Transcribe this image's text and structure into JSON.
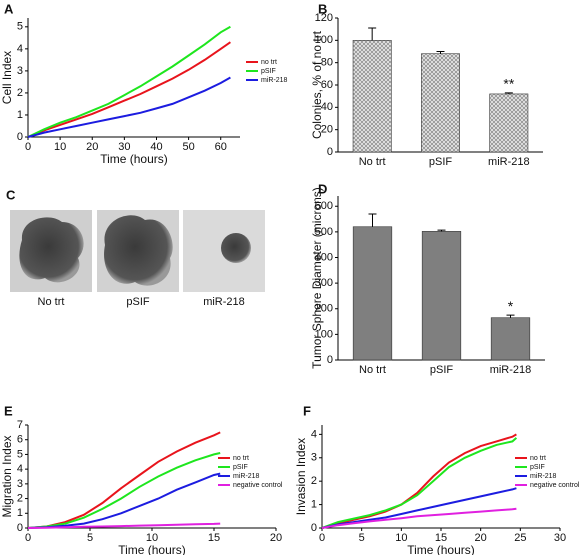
{
  "chart_data": [
    {
      "type": "line",
      "panel": "A",
      "xlabel": "Time (hours)",
      "ylabel": "Cell Index",
      "x": [
        0,
        5,
        10,
        15,
        20,
        25,
        30,
        35,
        40,
        45,
        50,
        55,
        60,
        63
      ],
      "series": [
        {
          "name": "no trt",
          "color": "#e8141c",
          "values": [
            0,
            0.3,
            0.55,
            0.8,
            1.05,
            1.35,
            1.65,
            1.95,
            2.3,
            2.65,
            3.05,
            3.5,
            4.0,
            4.3
          ]
        },
        {
          "name": "pSIF",
          "color": "#1ee61e",
          "values": [
            0,
            0.35,
            0.65,
            0.9,
            1.2,
            1.5,
            1.9,
            2.3,
            2.75,
            3.2,
            3.7,
            4.2,
            4.75,
            5.0
          ]
        },
        {
          "name": "miR-218",
          "color": "#1c1ce0",
          "values": [
            0,
            0.2,
            0.35,
            0.5,
            0.65,
            0.8,
            0.95,
            1.1,
            1.3,
            1.5,
            1.8,
            2.1,
            2.45,
            2.7
          ]
        }
      ],
      "xlim": [
        0,
        66
      ],
      "xticks": [
        0,
        10,
        20,
        30,
        40,
        50,
        60
      ],
      "ylim": [
        0,
        5.4
      ],
      "yticks": [
        0,
        1,
        2,
        3,
        4,
        5
      ]
    },
    {
      "type": "bar",
      "panel": "B",
      "ylabel": "Colonies, % of no trt",
      "categories": [
        "No trt",
        "pSIF",
        "miR-218"
      ],
      "values": [
        100,
        88,
        52
      ],
      "errors": [
        11,
        2,
        1
      ],
      "annotations": [
        null,
        null,
        "**"
      ],
      "color": "#cfcfcf",
      "pattern": "hatch",
      "ylim": [
        0,
        120
      ],
      "yticks": [
        0,
        20,
        40,
        60,
        80,
        100,
        120
      ]
    },
    {
      "type": "bar",
      "panel": "D",
      "ylabel": "Tumor Sphere Diameter (microns)",
      "categories": [
        "No trt",
        "pSIF",
        "miR-218"
      ],
      "values": [
        520,
        502,
        165
      ],
      "errors": [
        50,
        5,
        10
      ],
      "annotations": [
        null,
        null,
        "*"
      ],
      "color": "#7f7f7f",
      "ylim": [
        0,
        640
      ],
      "yticks": [
        0,
        100,
        200,
        300,
        400,
        500,
        600
      ]
    },
    {
      "type": "line",
      "panel": "E",
      "xlabel": "Time (hours)",
      "ylabel": "Migration Index",
      "x": [
        0,
        1.5,
        3,
        4.5,
        6,
        7.5,
        9,
        10.5,
        12,
        13.5,
        15,
        15.5
      ],
      "series": [
        {
          "name": "no trt",
          "color": "#e8141c",
          "values": [
            0,
            0.1,
            0.4,
            0.9,
            1.7,
            2.7,
            3.6,
            4.5,
            5.2,
            5.8,
            6.3,
            6.5
          ]
        },
        {
          "name": "pSIF",
          "color": "#1ee61e",
          "values": [
            0,
            0.1,
            0.3,
            0.7,
            1.3,
            2.0,
            2.8,
            3.5,
            4.1,
            4.6,
            5.0,
            5.1
          ]
        },
        {
          "name": "miR-218",
          "color": "#1c1ce0",
          "values": [
            0,
            0.05,
            0.15,
            0.3,
            0.6,
            1.0,
            1.5,
            2.0,
            2.6,
            3.1,
            3.6,
            3.7
          ]
        },
        {
          "name": "negative control",
          "color": "#e020e0",
          "values": [
            0,
            0.02,
            0.05,
            0.08,
            0.1,
            0.13,
            0.16,
            0.19,
            0.22,
            0.25,
            0.28,
            0.3
          ]
        }
      ],
      "xlim": [
        0,
        20
      ],
      "xticks": [
        0,
        5,
        10,
        15,
        20
      ],
      "ylim": [
        0,
        7
      ],
      "yticks": [
        0,
        1,
        2,
        3,
        4,
        5,
        6,
        7
      ]
    },
    {
      "type": "line",
      "panel": "F",
      "xlabel": "Time (hours)",
      "ylabel": "Invasion Index",
      "x": [
        0,
        2,
        4,
        6,
        8,
        10,
        12,
        14,
        16,
        18,
        20,
        22,
        24,
        24.5
      ],
      "series": [
        {
          "name": "no trt",
          "color": "#e8141c",
          "values": [
            0,
            0.2,
            0.35,
            0.5,
            0.7,
            1.0,
            1.5,
            2.2,
            2.8,
            3.2,
            3.5,
            3.7,
            3.9,
            4.0
          ]
        },
        {
          "name": "pSIF",
          "color": "#1ee61e",
          "values": [
            0,
            0.25,
            0.4,
            0.55,
            0.75,
            1.0,
            1.4,
            2.0,
            2.6,
            3.0,
            3.3,
            3.55,
            3.7,
            3.85
          ]
        },
        {
          "name": "miR-218",
          "color": "#1c1ce0",
          "values": [
            0,
            0.15,
            0.25,
            0.35,
            0.45,
            0.6,
            0.75,
            0.9,
            1.05,
            1.2,
            1.35,
            1.5,
            1.65,
            1.7
          ]
        },
        {
          "name": "negative control",
          "color": "#e020e0",
          "values": [
            0,
            0.12,
            0.2,
            0.28,
            0.35,
            0.42,
            0.5,
            0.55,
            0.6,
            0.65,
            0.7,
            0.75,
            0.8,
            0.82
          ]
        }
      ],
      "xlim": [
        0,
        30
      ],
      "xticks": [
        0,
        5,
        10,
        15,
        20,
        25,
        30
      ],
      "ylim": [
        0,
        4.4
      ],
      "yticks": [
        0,
        1,
        2,
        3,
        4
      ]
    }
  ],
  "image_panel": {
    "panel": "C",
    "labels": [
      "No trt",
      "pSIF",
      "miR-218"
    ]
  }
}
